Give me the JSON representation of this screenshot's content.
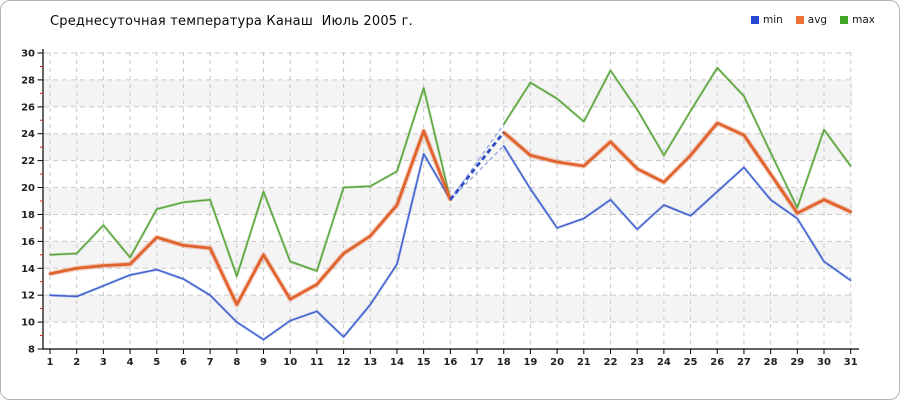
{
  "window": {
    "title": "Среднесуточная температура Канаш  Июль 2005 г."
  },
  "legend": {
    "items": [
      {
        "label": "min",
        "color": "#2547d2"
      },
      {
        "label": "avg",
        "color": "#ed7036"
      },
      {
        "label": "max",
        "color": "#3fa625"
      }
    ]
  },
  "chart_data": {
    "type": "line",
    "title": "Среднесуточная температура Канаш  Июль 2005 г.",
    "xlabel": "",
    "ylabel": "",
    "ylim": [
      8,
      30
    ],
    "grid": true,
    "legend_position": "top-right",
    "x": [
      1,
      2,
      3,
      4,
      5,
      6,
      7,
      8,
      9,
      10,
      11,
      12,
      13,
      14,
      15,
      16,
      17,
      18,
      19,
      20,
      21,
      22,
      23,
      24,
      25,
      26,
      27,
      28,
      29,
      30,
      31
    ],
    "x_tick_labels": [
      "1",
      "2",
      "3",
      "4",
      "5",
      "6",
      "7",
      "8",
      "9",
      "10",
      "11",
      "12",
      "13",
      "14",
      "15",
      "16",
      "17",
      "18",
      "19",
      "20",
      "21",
      "22",
      "23",
      "24",
      "25",
      "26",
      "27",
      "28",
      "29",
      "30",
      "31"
    ],
    "y_tick_labels": [
      "30",
      "28",
      "26",
      "24",
      "22",
      "20",
      "18",
      "16",
      "14",
      "12",
      "10",
      "8"
    ],
    "y_ticks": [
      30,
      28,
      26,
      24,
      22,
      20,
      18,
      16,
      14,
      12,
      10,
      8
    ],
    "missing_day": 17,
    "series": [
      {
        "name": "max",
        "color": "#5aa63c",
        "width": 1.5,
        "values": [
          15.0,
          15.1,
          17.2,
          14.8,
          18.4,
          18.9,
          19.1,
          13.4,
          19.7,
          14.5,
          13.8,
          20.0,
          20.1,
          21.2,
          27.4,
          19.1,
          null,
          24.7,
          27.8,
          26.6,
          24.9,
          28.7,
          25.8,
          22.4,
          25.7,
          28.9,
          26.8,
          22.6,
          18.5,
          24.3,
          21.6
        ]
      },
      {
        "name": "min",
        "color": "#4263cf",
        "width": 1.5,
        "values": [
          12.0,
          11.9,
          12.7,
          13.5,
          13.9,
          13.2,
          12.0,
          10.0,
          8.7,
          10.1,
          10.8,
          8.9,
          11.3,
          14.3,
          22.5,
          19.1,
          null,
          23.1,
          19.9,
          17.0,
          17.7,
          19.1,
          16.9,
          18.7,
          17.9,
          19.7,
          21.5,
          19.1,
          17.7,
          14.5,
          13.1
        ]
      },
      {
        "name": "avg",
        "color": "#e0622d",
        "width": 2.8,
        "values": [
          13.6,
          14.0,
          14.2,
          14.3,
          16.3,
          15.7,
          15.5,
          11.3,
          15.0,
          11.7,
          12.8,
          15.1,
          16.4,
          18.7,
          24.2,
          19.1,
          null,
          24.1,
          22.4,
          21.9,
          21.6,
          23.4,
          21.4,
          20.4,
          22.4,
          24.8,
          23.9,
          21.0,
          18.1,
          19.1,
          18.2
        ]
      }
    ],
    "gap_style": {
      "thick_color": "#2e4ec6",
      "thin_color": "#93a7e2"
    },
    "colors": {
      "band": "#f4f4f4",
      "gridline": "#c9c9c9",
      "axis": "#000000",
      "minor_tick": "#cc2222",
      "tick_text": "#222222"
    }
  }
}
